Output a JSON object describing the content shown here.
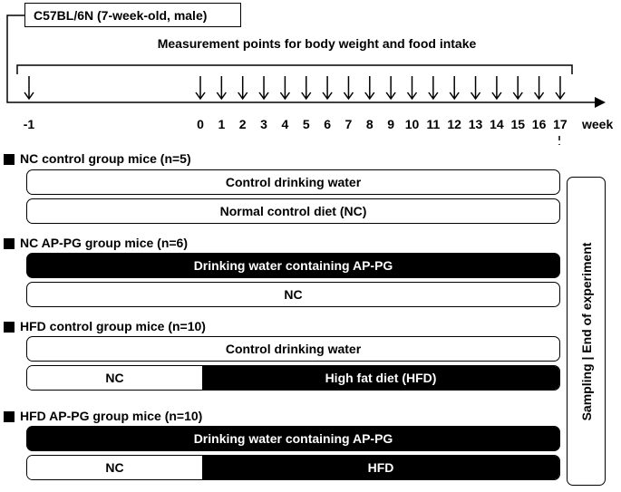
{
  "header": {
    "strain_label": "C57BL/6N (7-week-old, male)",
    "measurement_label": "Measurement points for body weight and food intake"
  },
  "timeline": {
    "start_label": "-1",
    "week_ticks": [
      "0",
      "1",
      "2",
      "3",
      "4",
      "5",
      "6",
      "7",
      "8",
      "9",
      "10",
      "11",
      "12",
      "13",
      "14",
      "15",
      "16",
      "17"
    ],
    "unit_label": "week"
  },
  "groups": [
    {
      "title": "NC control group mice (n=5)",
      "water": {
        "label": "Control drinking water",
        "style": "white"
      },
      "diet": {
        "label": "Normal control diet (NC)",
        "style": "white"
      }
    },
    {
      "title": "NC AP-PG group mice (n=6)",
      "water": {
        "label": "Drinking water containing AP-PG",
        "style": "black"
      },
      "diet": {
        "label": "NC",
        "style": "white"
      }
    },
    {
      "title": "HFD control group mice (n=10)",
      "water": {
        "label": "Control drinking water",
        "style": "white"
      },
      "diet_split": {
        "left_label": "NC",
        "right_label": "High fat diet (HFD)"
      }
    },
    {
      "title": "HFD AP-PG group mice (n=10)",
      "water": {
        "label": "Drinking water containing AP-PG",
        "style": "black"
      },
      "diet_split": {
        "left_label": "NC",
        "right_label": "HFD"
      }
    }
  ],
  "side_label": "Sampling | End of experiment"
}
